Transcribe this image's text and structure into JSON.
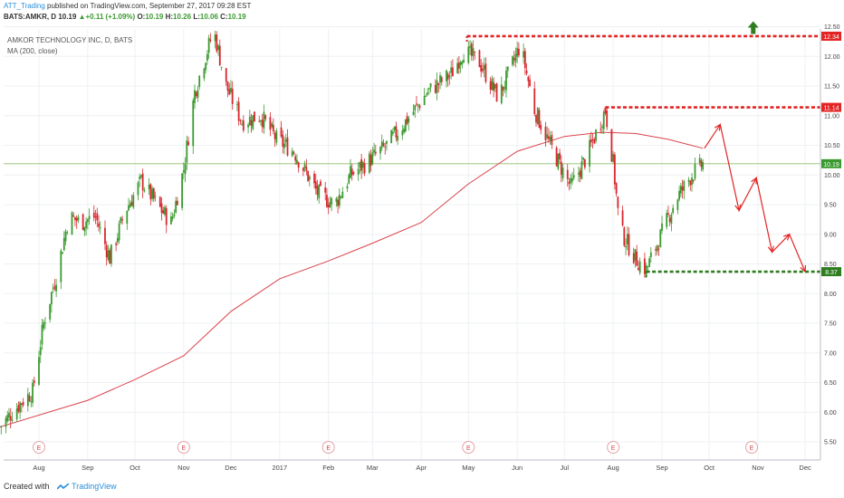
{
  "header": {
    "author": "ATT_Trading",
    "published": " published on TradingView.com, September 27, 2017 09:28 EST",
    "symbol": "BATS:AMKR, D",
    "last": "10.19",
    "change": "▲+0.11 (+1.09%)",
    "open_label": "O:",
    "open": "10.19",
    "high_label": "H:",
    "high": "10.26",
    "low_label": "L:",
    "low": "10.06",
    "close_label": "C:",
    "close": "10.19"
  },
  "legend": {
    "title": "AMKOR TECHNOLOGY INC, D, BATS",
    "ma": "MA (200, close)"
  },
  "footer": {
    "created_with": "Created with",
    "brand": "TradingView"
  },
  "colors": {
    "up": "#3a9a2f",
    "down": "#d9272e",
    "ma": "#d9434a",
    "resistance": "#e32424",
    "support": "#2e7d1f",
    "current": "#8fbf6a",
    "arrow": "#e32424"
  },
  "chart_data": {
    "type": "candlestick",
    "ylim": [
      5.25,
      12.6
    ],
    "yticks": [
      "5.50",
      "6.00",
      "6.50",
      "7.00",
      "7.50",
      "8.00",
      "8.50",
      "9.00",
      "9.50",
      "10.00",
      "10.50",
      "11.00",
      "11.50",
      "12.00",
      "12.50"
    ],
    "xticks": [
      {
        "label": "Aug",
        "x": "2016-08-01"
      },
      {
        "label": "Sep",
        "x": "2016-09-01"
      },
      {
        "label": "Oct",
        "x": "2016-10-01"
      },
      {
        "label": "Nov",
        "x": "2016-11-01"
      },
      {
        "label": "Dec",
        "x": "2016-12-01"
      },
      {
        "label": "2017",
        "x": "2017-01-01"
      },
      {
        "label": "Feb",
        "x": "2017-02-01"
      },
      {
        "label": "Mar",
        "x": "2017-03-01"
      },
      {
        "label": "Apr",
        "x": "2017-04-01"
      },
      {
        "label": "May",
        "x": "2017-05-01"
      },
      {
        "label": "Jun",
        "x": "2017-06-01"
      },
      {
        "label": "Jul",
        "x": "2017-07-01"
      },
      {
        "label": "Aug",
        "x": "2017-08-01"
      },
      {
        "label": "Sep",
        "x": "2017-09-01"
      },
      {
        "label": "Oct",
        "x": "2017-10-01"
      },
      {
        "label": "Nov",
        "x": "2017-11-01"
      },
      {
        "label": "Dec",
        "x": "2017-12-01"
      }
    ],
    "price_path": [
      [
        "2016-07-07",
        5.75
      ],
      [
        "2016-07-20",
        6.15
      ],
      [
        "2016-07-28",
        6.35
      ],
      [
        "2016-08-04",
        7.5
      ],
      [
        "2016-08-12",
        8.3
      ],
      [
        "2016-08-20",
        9.3
      ],
      [
        "2016-08-28",
        9.2
      ],
      [
        "2016-09-06",
        9.3
      ],
      [
        "2016-09-15",
        8.6
      ],
      [
        "2016-09-25",
        9.4
      ],
      [
        "2016-10-05",
        9.9
      ],
      [
        "2016-10-15",
        9.5
      ],
      [
        "2016-10-24",
        9.2
      ],
      [
        "2016-11-01",
        10.1
      ],
      [
        "2016-11-08",
        11.4
      ],
      [
        "2016-11-20",
        12.45
      ],
      [
        "2016-11-28",
        11.5
      ],
      [
        "2016-12-08",
        10.9
      ],
      [
        "2016-12-20",
        11.0
      ],
      [
        "2016-12-30",
        10.6
      ],
      [
        "2017-01-10",
        10.4
      ],
      [
        "2017-01-25",
        9.7
      ],
      [
        "2017-02-05",
        9.5
      ],
      [
        "2017-02-15",
        10.0
      ],
      [
        "2017-02-25",
        10.2
      ],
      [
        "2017-03-10",
        10.5
      ],
      [
        "2017-03-25",
        11.0
      ],
      [
        "2017-04-05",
        11.4
      ],
      [
        "2017-04-20",
        11.7
      ],
      [
        "2017-04-28",
        12.1
      ],
      [
        "2017-05-08",
        11.9
      ],
      [
        "2017-05-20",
        11.3
      ],
      [
        "2017-05-28",
        11.8
      ],
      [
        "2017-06-03",
        12.2
      ],
      [
        "2017-06-12",
        11.1
      ],
      [
        "2017-06-22",
        10.5
      ],
      [
        "2017-07-05",
        9.8
      ],
      [
        "2017-07-15",
        10.3
      ],
      [
        "2017-07-27",
        11.1
      ],
      [
        "2017-08-01",
        10.2
      ],
      [
        "2017-08-05",
        9.1
      ],
      [
        "2017-08-15",
        8.6
      ],
      [
        "2017-08-22",
        8.4
      ],
      [
        "2017-08-30",
        8.9
      ],
      [
        "2017-09-10",
        9.6
      ],
      [
        "2017-09-20",
        10.0
      ],
      [
        "2017-09-27",
        10.19
      ]
    ],
    "ma_path": [
      [
        "2016-07-07",
        5.75
      ],
      [
        "2016-09-01",
        6.2
      ],
      [
        "2016-10-01",
        6.55
      ],
      [
        "2016-11-01",
        6.95
      ],
      [
        "2016-12-01",
        7.7
      ],
      [
        "2017-01-01",
        8.25
      ],
      [
        "2017-02-01",
        8.55
      ],
      [
        "2017-03-01",
        8.85
      ],
      [
        "2017-04-01",
        9.2
      ],
      [
        "2017-05-01",
        9.85
      ],
      [
        "2017-06-01",
        10.4
      ],
      [
        "2017-07-01",
        10.65
      ],
      [
        "2017-07-25",
        10.72
      ],
      [
        "2017-08-15",
        10.7
      ],
      [
        "2017-09-05",
        10.6
      ],
      [
        "2017-09-27",
        10.45
      ]
    ],
    "annotations": {
      "resistance_high": {
        "label": "12.34",
        "y": 12.34,
        "from": "2017-04-30"
      },
      "resistance_mid": {
        "label": "11.14",
        "y": 11.14,
        "from": "2017-07-27"
      },
      "support": {
        "label": "8.37",
        "y": 8.37,
        "from": "2017-08-22"
      },
      "current": {
        "label": "10.19",
        "y": 10.19
      },
      "projection_arrows": [
        [
          "2017-09-28",
          10.45
        ],
        [
          "2017-10-08",
          10.85
        ],
        [
          "2017-10-20",
          9.4
        ],
        [
          "2017-10-31",
          9.95
        ],
        [
          "2017-11-10",
          8.7
        ],
        [
          "2017-11-21",
          9.0
        ],
        [
          "2017-12-01",
          8.37
        ]
      ],
      "up_arrow": {
        "x": "2017-10-29",
        "y": 12.5
      },
      "earnings_markers": [
        "2016-08-01",
        "2016-11-01",
        "2017-02-01",
        "2017-05-01",
        "2017-08-01",
        "2017-10-28"
      ],
      "earnings_label": "E"
    }
  }
}
